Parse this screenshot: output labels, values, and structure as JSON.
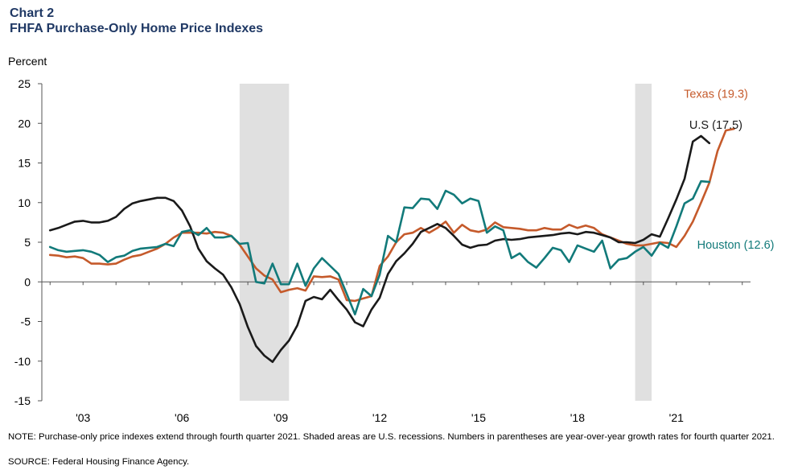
{
  "header": {
    "chart_label": "Chart 2",
    "title": "FHFA Purchase-Only Home Price Indexes"
  },
  "footer": {
    "note": "NOTE: Purchase-only price indexes extend through fourth quarter 2021. Shaded areas are U.S. recessions. Numbers in parentheses are year-over-year  growth rates for fourth quarter 2021.",
    "source": "SOURCE: Federal Housing Finance Agency."
  },
  "colors": {
    "texas": "#c55a2b",
    "us": "#1a1a1a",
    "houston": "#127a7a",
    "recession": "#e0e0e0",
    "axis": "#555555"
  },
  "chart_data": {
    "type": "line",
    "ylabel": "Percent",
    "ylim": [
      -15,
      25
    ],
    "yticks": [
      25,
      20,
      15,
      10,
      5,
      0,
      -5,
      -10,
      -15
    ],
    "xlim": [
      2001.75,
      2023.25
    ],
    "xticks": [
      {
        "label": "'03",
        "x": 2003
      },
      {
        "label": "'06",
        "x": 2006
      },
      {
        "label": "'09",
        "x": 2009
      },
      {
        "label": "'12",
        "x": 2012
      },
      {
        "label": "'15",
        "x": 2015
      },
      {
        "label": "'18",
        "x": 2018
      },
      {
        "label": "'21",
        "x": 2021
      }
    ],
    "grid": false,
    "recessions": [
      [
        2007.75,
        2009.25
      ],
      [
        2019.75,
        2020.25
      ]
    ],
    "x_start": 2002.0,
    "x_step": 0.25,
    "series": [
      {
        "name": "Texas",
        "label": "Texas (19.3)",
        "color_key": "texas",
        "values": [
          3.4,
          3.3,
          3.1,
          3.2,
          3.0,
          2.3,
          2.3,
          2.2,
          2.3,
          2.8,
          3.2,
          3.4,
          3.8,
          4.2,
          4.8,
          5.6,
          6.2,
          6.2,
          6.2,
          6.1,
          6.3,
          6.2,
          5.8,
          4.7,
          3.2,
          1.7,
          0.8,
          0.3,
          -1.3,
          -1.0,
          -0.8,
          -1.1,
          0.7,
          0.6,
          0.7,
          0.3,
          -2.3,
          -2.4,
          -2.1,
          -1.8,
          2.0,
          3.2,
          5.0,
          6.0,
          6.2,
          6.8,
          6.2,
          6.8,
          7.6,
          6.2,
          7.2,
          6.5,
          6.3,
          6.6,
          7.5,
          6.9,
          6.8,
          6.7,
          6.5,
          6.5,
          6.8,
          6.6,
          6.6,
          7.2,
          6.8,
          7.1,
          6.8,
          6.0,
          5.6,
          5.2,
          4.8,
          4.6,
          4.6,
          4.8,
          5.0,
          4.9,
          4.4,
          5.8,
          7.6,
          10.0,
          12.5,
          16.5,
          19.1,
          19.3
        ],
        "end_label_x": 2022.2,
        "end_label_y": 23.2
      },
      {
        "name": "U.S.",
        "label": "U.S (17.5)",
        "color_key": "us",
        "values": [
          6.5,
          6.8,
          7.2,
          7.6,
          7.7,
          7.5,
          7.5,
          7.7,
          8.2,
          9.2,
          9.9,
          10.2,
          10.4,
          10.6,
          10.6,
          10.2,
          9.0,
          7.0,
          4.2,
          2.6,
          1.7,
          0.9,
          -0.7,
          -2.8,
          -5.7,
          -8.1,
          -9.3,
          -10.1,
          -8.6,
          -7.4,
          -5.5,
          -2.4,
          -1.9,
          -2.2,
          -1.0,
          -2.3,
          -3.5,
          -5.1,
          -5.6,
          -3.5,
          -2.0,
          1.0,
          2.6,
          3.6,
          4.8,
          6.3,
          6.8,
          7.3,
          6.8,
          5.8,
          4.7,
          4.3,
          4.6,
          4.7,
          5.2,
          5.4,
          5.3,
          5.4,
          5.6,
          5.7,
          5.8,
          5.9,
          6.1,
          6.2,
          6.0,
          6.3,
          6.2,
          5.9,
          5.6,
          5.0,
          5.0,
          4.9,
          5.3,
          6.0,
          5.7,
          8.0,
          10.4,
          13.0,
          17.7,
          18.4,
          17.5
        ],
        "end_label_x": 2022.2,
        "end_label_y": 19.3
      },
      {
        "name": "Houston",
        "label": "Houston (12.6)",
        "color_key": "houston",
        "values": [
          4.4,
          4.0,
          3.8,
          3.9,
          4.0,
          3.8,
          3.4,
          2.5,
          3.1,
          3.3,
          3.9,
          4.2,
          4.3,
          4.4,
          4.8,
          4.5,
          6.3,
          6.5,
          5.9,
          6.8,
          5.6,
          5.6,
          5.8,
          4.8,
          4.9,
          0.0,
          -0.2,
          2.3,
          -0.3,
          -0.3,
          2.3,
          -0.5,
          1.7,
          3.0,
          2.0,
          1.0,
          -1.5,
          -4.1,
          -0.9,
          -1.8,
          0.9,
          5.8,
          5.0,
          9.4,
          9.3,
          10.5,
          10.4,
          9.2,
          11.5,
          11.0,
          9.9,
          10.5,
          10.2,
          6.2,
          7.0,
          6.5,
          3.0,
          3.6,
          2.5,
          1.8,
          3.0,
          4.3,
          4.0,
          2.5,
          4.6,
          4.2,
          3.8,
          5.2,
          1.7,
          2.8,
          3.0,
          3.8,
          4.4,
          3.3,
          4.9,
          4.3,
          7.0,
          9.9,
          10.5,
          12.7,
          12.6
        ],
        "end_label_x": 2022.8,
        "end_label_y": 4.2
      }
    ]
  }
}
